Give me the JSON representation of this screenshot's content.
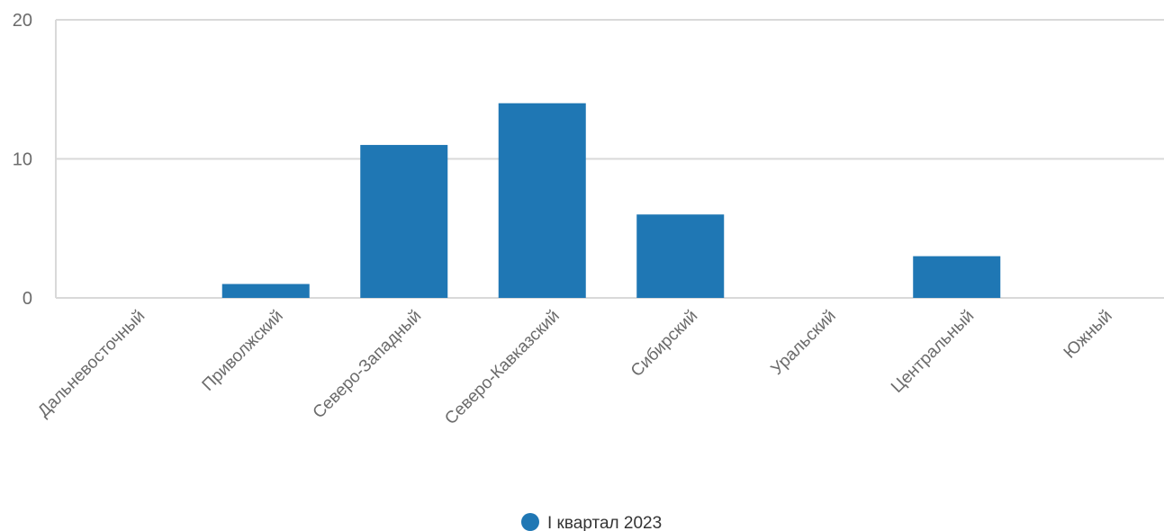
{
  "chart_data": {
    "type": "bar",
    "categories": [
      "Дальневосточный",
      "Приволжский",
      "Северо-Западный",
      "Северо-Кавказский",
      "Сибирский",
      "Уральский",
      "Центральный",
      "Южный"
    ],
    "series": [
      {
        "name": "I квартал 2023",
        "values": [
          0,
          1,
          11,
          14,
          6,
          0,
          3,
          0
        ],
        "color": "#1f77b4"
      }
    ],
    "ylim": [
      0,
      20
    ],
    "yticks": [
      0,
      10,
      20
    ],
    "grid": true,
    "legend_position": "bottom-center",
    "title": "",
    "xlabel": "",
    "ylabel": ""
  }
}
